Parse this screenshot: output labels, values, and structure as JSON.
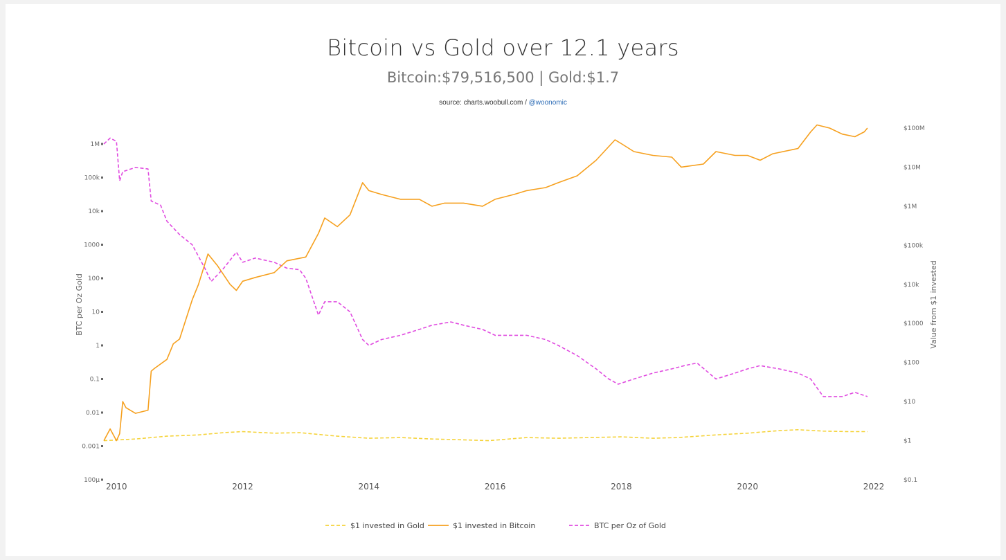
{
  "header": {
    "title": "Bitcoin vs Gold over 12.1 years",
    "subtitle": "Bitcoin:$79,516,500 | Gold:$1.7",
    "source_prefix": "source: charts.woobull.com / ",
    "source_handle": "@woonomic"
  },
  "colors": {
    "gold": "#f5d33a",
    "bitcoin": "#f6a01e",
    "ratio": "#e04be0"
  },
  "chart_data": {
    "type": "line",
    "title": "Bitcoin vs Gold over 12.1 years",
    "subtitle": "Bitcoin:$79,516,500 | Gold:$1.7",
    "x_ticks": [
      "2010",
      "2012",
      "2014",
      "2016",
      "2018",
      "2020",
      "2022"
    ],
    "xlim": [
      2009.8,
      2022
    ],
    "left_axis": {
      "label": "BTC per Oz Gold",
      "scale": "log",
      "lim": [
        0.0001,
        1000000
      ],
      "ticks": [
        "100µ",
        "0.001",
        "0.01",
        "0.1",
        "1",
        "10",
        "100",
        "1000",
        "10k",
        "100k",
        "1M"
      ]
    },
    "right_axis": {
      "label": "Value from $1 invested",
      "scale": "log",
      "lim": [
        0.1,
        100000000
      ],
      "ticks": [
        "$0.1",
        "$1",
        "$10",
        "$100",
        "$1000",
        "$10k",
        "$100k",
        "$1M",
        "$10M",
        "$100M"
      ]
    },
    "legend": [
      "$1 invested in Gold",
      "$1 invested in Bitcoin",
      "BTC per Oz of Gold"
    ],
    "legend_position": "bottom",
    "grid": false,
    "series": [
      {
        "name": "$1 invested in Gold",
        "axis": "right",
        "style": "dashed",
        "x": [
          2009.8,
          2010.3,
          2010.8,
          2011.3,
          2011.7,
          2012.0,
          2012.5,
          2012.9,
          2013.5,
          2014.0,
          2014.5,
          2015.0,
          2015.5,
          2015.9,
          2016.5,
          2017.0,
          2017.5,
          2018.0,
          2018.5,
          2018.9,
          2019.5,
          2020.0,
          2020.5,
          2020.8,
          2021.2,
          2021.6,
          2021.9
        ],
        "y": [
          1.0,
          1.1,
          1.3,
          1.4,
          1.6,
          1.7,
          1.55,
          1.6,
          1.3,
          1.15,
          1.2,
          1.1,
          1.05,
          1.0,
          1.2,
          1.15,
          1.2,
          1.25,
          1.15,
          1.2,
          1.4,
          1.55,
          1.8,
          1.9,
          1.75,
          1.7,
          1.7
        ]
      },
      {
        "name": "$1 invested in Bitcoin",
        "axis": "right",
        "style": "solid",
        "x": [
          2009.8,
          2009.9,
          2010.0,
          2010.05,
          2010.1,
          2010.15,
          2010.3,
          2010.5,
          2010.55,
          2010.6,
          2010.8,
          2010.9,
          2011.0,
          2011.2,
          2011.3,
          2011.45,
          2011.6,
          2011.8,
          2011.9,
          2012.0,
          2012.2,
          2012.5,
          2012.7,
          2013.0,
          2013.2,
          2013.3,
          2013.5,
          2013.7,
          2013.9,
          2014.0,
          2014.2,
          2014.5,
          2014.8,
          2015.0,
          2015.2,
          2015.5,
          2015.8,
          2016.0,
          2016.3,
          2016.5,
          2016.8,
          2017.0,
          2017.3,
          2017.6,
          2017.9,
          2018.0,
          2018.2,
          2018.5,
          2018.8,
          2018.95,
          2019.3,
          2019.5,
          2019.8,
          2020.0,
          2020.2,
          2020.4,
          2020.8,
          2021.0,
          2021.1,
          2021.3,
          2021.5,
          2021.7,
          2021.85,
          2021.9
        ],
        "y": [
          1.0,
          2.0,
          1.0,
          1.5,
          10,
          7,
          5,
          6,
          60,
          70,
          120,
          300,
          400,
          4000,
          10000,
          60000,
          30000,
          10000,
          7000,
          12000,
          15000,
          20000,
          40000,
          50000,
          200000,
          500000,
          300000,
          600000,
          4000000,
          2500000,
          2000000,
          1500000,
          1500000,
          1000000,
          1200000,
          1200000,
          1000000,
          1500000,
          2000000,
          2500000,
          3000000,
          4000000,
          6000000,
          15000000,
          50000000,
          40000000,
          25000000,
          20000000,
          18000000,
          10000000,
          12000000,
          25000000,
          20000000,
          20000000,
          15000000,
          22000000,
          30000000,
          80000000,
          120000000,
          100000000,
          70000000,
          60000000,
          80000000,
          100000000
        ]
      },
      {
        "name": "BTC per Oz of Gold",
        "axis": "left",
        "style": "dashed",
        "x": [
          2009.8,
          2009.9,
          2010.0,
          2010.05,
          2010.1,
          2010.3,
          2010.5,
          2010.55,
          2010.7,
          2010.8,
          2011.0,
          2011.2,
          2011.4,
          2011.5,
          2011.7,
          2011.9,
          2012.0,
          2012.2,
          2012.5,
          2012.7,
          2012.9,
          2013.0,
          2013.2,
          2013.3,
          2013.5,
          2013.7,
          2013.9,
          2014.0,
          2014.2,
          2014.5,
          2014.8,
          2015.0,
          2015.3,
          2015.5,
          2015.8,
          2016.0,
          2016.3,
          2016.5,
          2016.8,
          2017.0,
          2017.3,
          2017.6,
          2017.8,
          2017.95,
          2018.2,
          2018.5,
          2018.8,
          2019.0,
          2019.2,
          2019.5,
          2019.8,
          2020.0,
          2020.2,
          2020.5,
          2020.8,
          2021.0,
          2021.2,
          2021.5,
          2021.7,
          2021.9
        ],
        "y": [
          1000000,
          1500000,
          1200000,
          80000,
          150000,
          200000,
          180000,
          20000,
          15000,
          5000,
          2000,
          1000,
          200,
          80,
          200,
          600,
          300,
          400,
          300,
          200,
          180,
          100,
          8,
          20,
          20,
          10,
          1.5,
          1,
          1.5,
          2,
          3,
          4,
          5,
          4,
          3,
          2,
          2,
          2,
          1.5,
          1,
          0.5,
          0.2,
          0.1,
          0.07,
          0.1,
          0.15,
          0.2,
          0.25,
          0.3,
          0.1,
          0.15,
          0.2,
          0.25,
          0.2,
          0.15,
          0.1,
          0.03,
          0.03,
          0.04,
          0.03
        ]
      }
    ]
  }
}
